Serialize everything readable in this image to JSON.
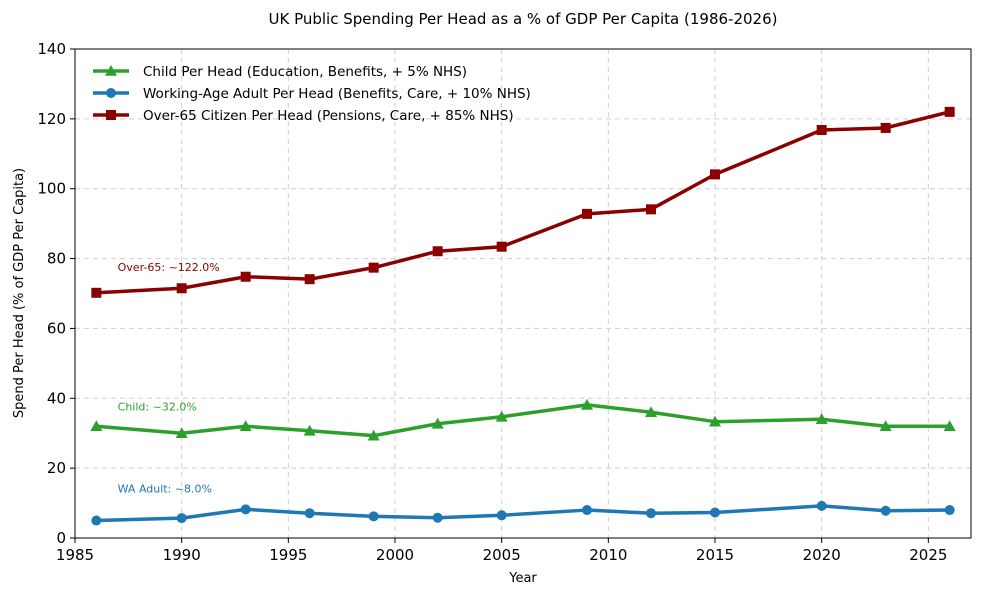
{
  "chart_data": {
    "type": "line",
    "title": "UK Public Spending Per Head as a % of GDP Per Capita (1986-2026)",
    "xlabel": "Year",
    "ylabel": "Spend Per Head (% of GDP Per Capita)",
    "xlim": [
      1985,
      2027
    ],
    "ylim": [
      0,
      140
    ],
    "xticks": [
      1985,
      1990,
      1995,
      2000,
      2005,
      2010,
      2015,
      2020,
      2025
    ],
    "yticks": [
      0,
      20,
      40,
      60,
      80,
      100,
      120,
      140
    ],
    "grid": true,
    "legend_position": "top-left",
    "x": [
      1986,
      1990,
      1993,
      1996,
      1999,
      2002,
      2005,
      2009,
      2012,
      2015,
      2020,
      2023,
      2026
    ],
    "series": [
      {
        "name": "Child Per Head (Education, Benefits, + 5% NHS)",
        "color": "#2ca02c",
        "marker": "triangle",
        "values": [
          32.0,
          30.0,
          32.0,
          30.7,
          29.3,
          32.7,
          34.7,
          38.1,
          36.0,
          33.3,
          34.0,
          32.0,
          32.0
        ]
      },
      {
        "name": "Working-Age Adult Per Head (Benefits, Care, + 10% NHS)",
        "color": "#1f77b4",
        "marker": "circle",
        "values": [
          5.0,
          5.7,
          8.2,
          7.1,
          6.2,
          5.8,
          6.5,
          8.0,
          7.1,
          7.3,
          9.2,
          7.8,
          8.0
        ]
      },
      {
        "name": "Over-65 Citizen Per Head (Pensions, Care, + 85% NHS)",
        "color": "#8b0000",
        "marker": "square",
        "values": [
          70.2,
          71.5,
          74.8,
          74.1,
          77.4,
          82.1,
          83.4,
          92.8,
          94.1,
          104.1,
          116.8,
          117.4,
          122.0
        ]
      }
    ],
    "annotations": [
      {
        "text": "Over-65: ~122.0%",
        "x": 1987.0,
        "y": 76.5,
        "color": "#8b0000"
      },
      {
        "text": "Child: ~32.0%",
        "x": 1987.0,
        "y": 36.5,
        "color": "#2ca02c"
      },
      {
        "text": "WA Adult: ~8.0%",
        "x": 1987.0,
        "y": 13.0,
        "color": "#1f77b4"
      }
    ]
  }
}
